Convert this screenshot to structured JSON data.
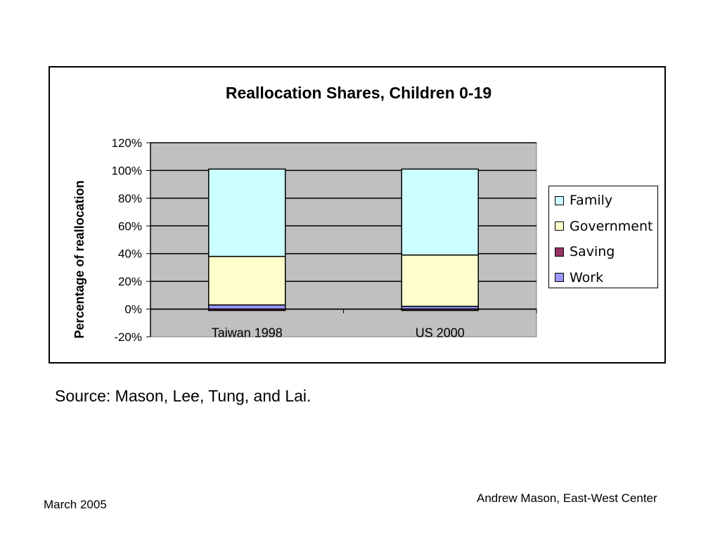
{
  "slide": {
    "source": "Source:  Mason, Lee, Tung, and Lai.",
    "footer_left": "March 2005",
    "footer_right": "Andrew Mason, East-West Center"
  },
  "colors": {
    "plot_background": "#c0c0c0",
    "family": "#ccffff",
    "government": "#ffffcc",
    "saving": "#993366",
    "work": "#9999ff"
  },
  "chart_data": {
    "type": "bar",
    "stacked": true,
    "title": "Reallocation Shares, Children 0-19",
    "xlabel": "",
    "ylabel": "Percentage of reallocation",
    "ylim": [
      -20,
      120
    ],
    "yticks": [
      -20,
      0,
      20,
      40,
      60,
      80,
      100,
      120
    ],
    "ytick_labels": [
      "-20%",
      "0%",
      "20%",
      "40%",
      "60%",
      "80%",
      "100%",
      "120%"
    ],
    "grid": true,
    "legend": "right",
    "categories": [
      "Taiwan 1998",
      "US 2000"
    ],
    "series": [
      {
        "name": "Work",
        "color": "#9999ff",
        "values": [
          3,
          2
        ]
      },
      {
        "name": "Saving",
        "color": "#993366",
        "values": [
          -1,
          -1
        ]
      },
      {
        "name": "Government",
        "color": "#ffffcc",
        "values": [
          35,
          37
        ]
      },
      {
        "name": "Family",
        "color": "#ccffff",
        "values": [
          63,
          62
        ]
      }
    ]
  }
}
